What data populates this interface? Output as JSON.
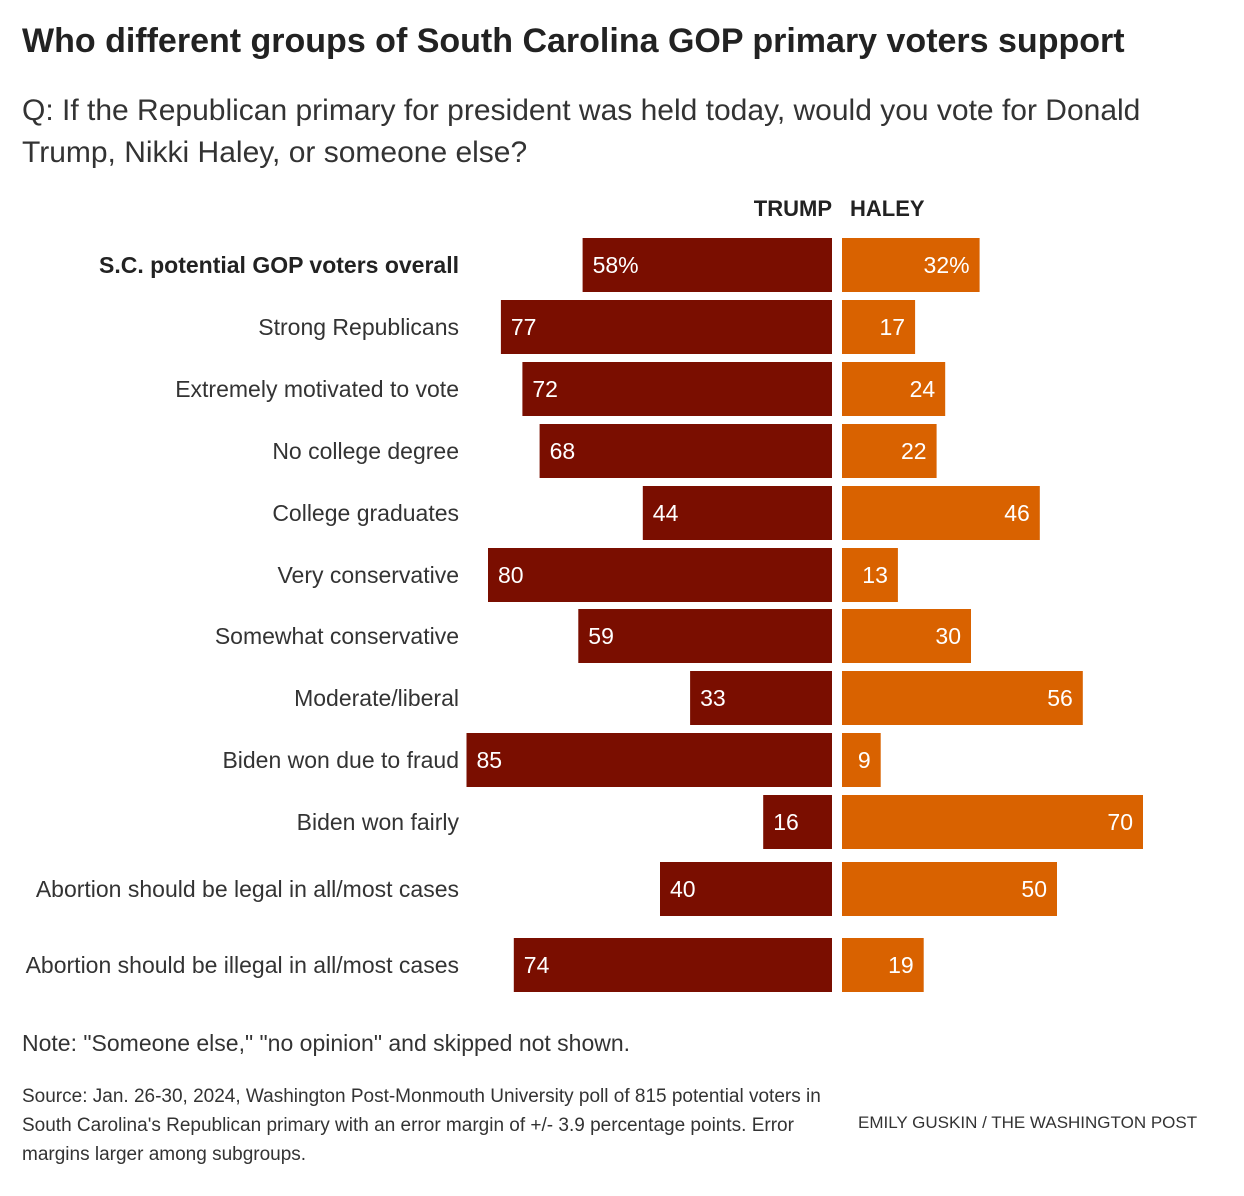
{
  "title": "Who different groups of South Carolina GOP primary voters support",
  "subtitle": "Q: If the Republican primary for president was held today, would you vote for Donald Trump, Nikki Haley, or someone else?",
  "note": "Note: \"Someone else,\" \"no opinion\" and skipped not shown.",
  "source": "Source: Jan. 26-30, 2024, Washington Post-Monmouth University poll of 815 potential voters in South Carolina's Republican primary with an error margin of +/- 3.9 percentage points. Error margins larger among subgroups.",
  "credit": "EMILY GUSKIN / THE WASHINGTON POST",
  "colors": {
    "trump": "#7a0e00",
    "haley": "#d96200"
  },
  "chart_data": {
    "type": "bar",
    "orientation": "horizontal-diverging",
    "categories": [
      "S.C. potential GOP voters overall",
      "Strong Republicans",
      "Extremely motivated to vote",
      "No college degree",
      "College graduates",
      "Very conservative",
      "Somewhat conservative",
      "Moderate/liberal",
      "Biden won due to fraud",
      "Biden won fairly",
      "Abortion should be legal in all/most cases",
      "Abortion should be illegal in all/most cases"
    ],
    "series": [
      {
        "name": "TRUMP",
        "values": [
          58,
          77,
          72,
          68,
          44,
          80,
          59,
          33,
          85,
          16,
          40,
          74
        ],
        "labels": [
          "58%",
          "77",
          "72",
          "68",
          "44",
          "80",
          "59",
          "33",
          "85",
          "16",
          "40",
          "74"
        ]
      },
      {
        "name": "HALEY",
        "values": [
          32,
          17,
          24,
          22,
          46,
          13,
          30,
          56,
          9,
          70,
          50,
          19
        ],
        "labels": [
          "32%",
          "17",
          "24",
          "22",
          "46",
          "13",
          "30",
          "56",
          "9",
          "70",
          "50",
          "19"
        ]
      }
    ],
    "unit": "%"
  }
}
